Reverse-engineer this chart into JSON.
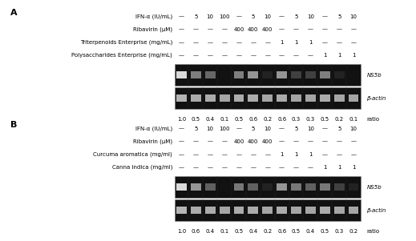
{
  "panel_A": {
    "label": "A",
    "rows": [
      {
        "name": "IFN-α (IU/mL)",
        "values": [
          "—",
          "5",
          "10",
          "100",
          "—",
          "5",
          "10",
          "—",
          "5",
          "10",
          "—",
          "5",
          "10"
        ]
      },
      {
        "name": "Ribavirin (μM)",
        "values": [
          "—",
          "—",
          "—",
          "—",
          "400",
          "400",
          "400",
          "—",
          "—",
          "—",
          "—",
          "—",
          "—"
        ]
      },
      {
        "name": "Triterpenoids Enterprise (mg/mL)",
        "values": [
          "—",
          "—",
          "—",
          "—",
          "—",
          "—",
          "—",
          "1",
          "1",
          "1",
          "—",
          "—",
          "—"
        ]
      },
      {
        "name": "Polysaccharides Enterprise (mg/mL)",
        "values": [
          "—",
          "—",
          "—",
          "—",
          "—",
          "—",
          "—",
          "—",
          "—",
          "—",
          "1",
          "1",
          "1"
        ]
      }
    ],
    "ratio_values": [
      "1.0",
      "0.5",
      "0.4",
      "0.1",
      "0.5",
      "0.6",
      "0.2",
      "0.6",
      "0.3",
      "0.3",
      "0.5",
      "0.2",
      "0.1"
    ],
    "ns5b_intensities": [
      0.95,
      0.55,
      0.45,
      0.08,
      0.55,
      0.65,
      0.15,
      0.65,
      0.28,
      0.28,
      0.55,
      0.15,
      0.08
    ],
    "bactin_intensities": [
      0.82,
      0.78,
      0.78,
      0.75,
      0.78,
      0.78,
      0.75,
      0.78,
      0.75,
      0.75,
      0.78,
      0.75,
      0.75
    ],
    "n_lanes": 13
  },
  "panel_B": {
    "label": "B",
    "rows": [
      {
        "name": "IFN-α (IU/mL)",
        "values": [
          "—",
          "5",
          "10",
          "100",
          "—",
          "5",
          "10",
          "—",
          "5",
          "10",
          "—",
          "5",
          "10"
        ]
      },
      {
        "name": "Ribavirin (μM)",
        "values": [
          "—",
          "—",
          "—",
          "—",
          "400",
          "400",
          "400",
          "—",
          "—",
          "—",
          "—",
          "—",
          "—"
        ]
      },
      {
        "name": "Curcuma aromatica (mg/ml)",
        "values": [
          "—",
          "—",
          "—",
          "—",
          "—",
          "—",
          "—",
          "1",
          "1",
          "1",
          "—",
          "—",
          "—"
        ]
      },
      {
        "name": "Canna indica (mg/ml)",
        "values": [
          "—",
          "—",
          "—",
          "—",
          "—",
          "—",
          "—",
          "—",
          "—",
          "—",
          "1",
          "1",
          "1"
        ]
      }
    ],
    "ratio_values": [
      "1.0",
      "0.6",
      "0.4",
      "0.1",
      "0.5",
      "0.4",
      "0.2",
      "0.6",
      "0.5",
      "0.4",
      "0.5",
      "0.3",
      "0.2"
    ],
    "ns5b_intensities": [
      0.95,
      0.65,
      0.42,
      0.08,
      0.52,
      0.42,
      0.15,
      0.65,
      0.52,
      0.42,
      0.52,
      0.28,
      0.15
    ],
    "bactin_intensities": [
      0.82,
      0.78,
      0.78,
      0.75,
      0.78,
      0.78,
      0.75,
      0.78,
      0.75,
      0.75,
      0.78,
      0.75,
      0.75
    ],
    "n_lanes": 13
  },
  "font_size": 5.0,
  "panel_label_size": 8.0,
  "gel_bg": "#111111",
  "dash_color": "#555555"
}
